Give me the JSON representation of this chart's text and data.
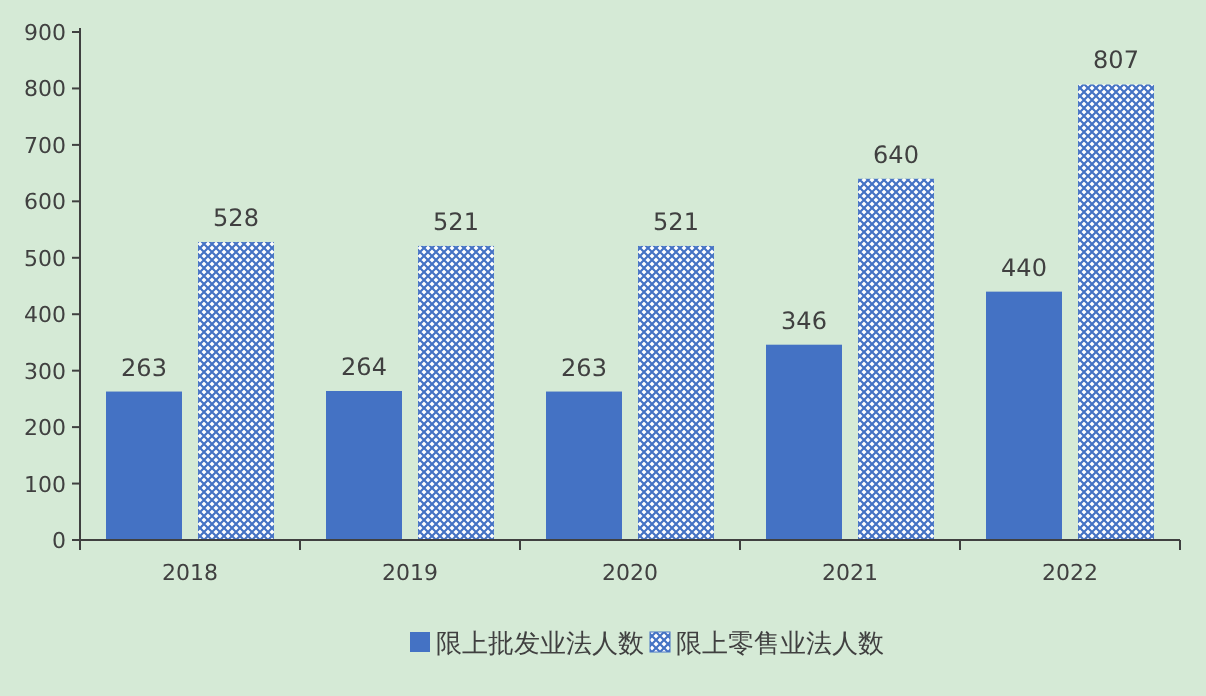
{
  "chart_data": {
    "type": "bar",
    "categories": [
      "2018",
      "2019",
      "2020",
      "2021",
      "2022"
    ],
    "series": [
      {
        "name": "限上批发业法人数",
        "color": "#4472c4",
        "values": [
          263,
          264,
          263,
          346,
          440
        ]
      },
      {
        "name": "限上零售业法人数",
        "color": "#4472c4",
        "values": [
          528,
          521,
          521,
          640,
          807
        ]
      }
    ],
    "ylim": [
      0,
      900
    ],
    "yticks": [
      0,
      100,
      200,
      300,
      400,
      500,
      600,
      700,
      800,
      900
    ],
    "data_labels": true,
    "legend": "bottom",
    "grid": false
  }
}
